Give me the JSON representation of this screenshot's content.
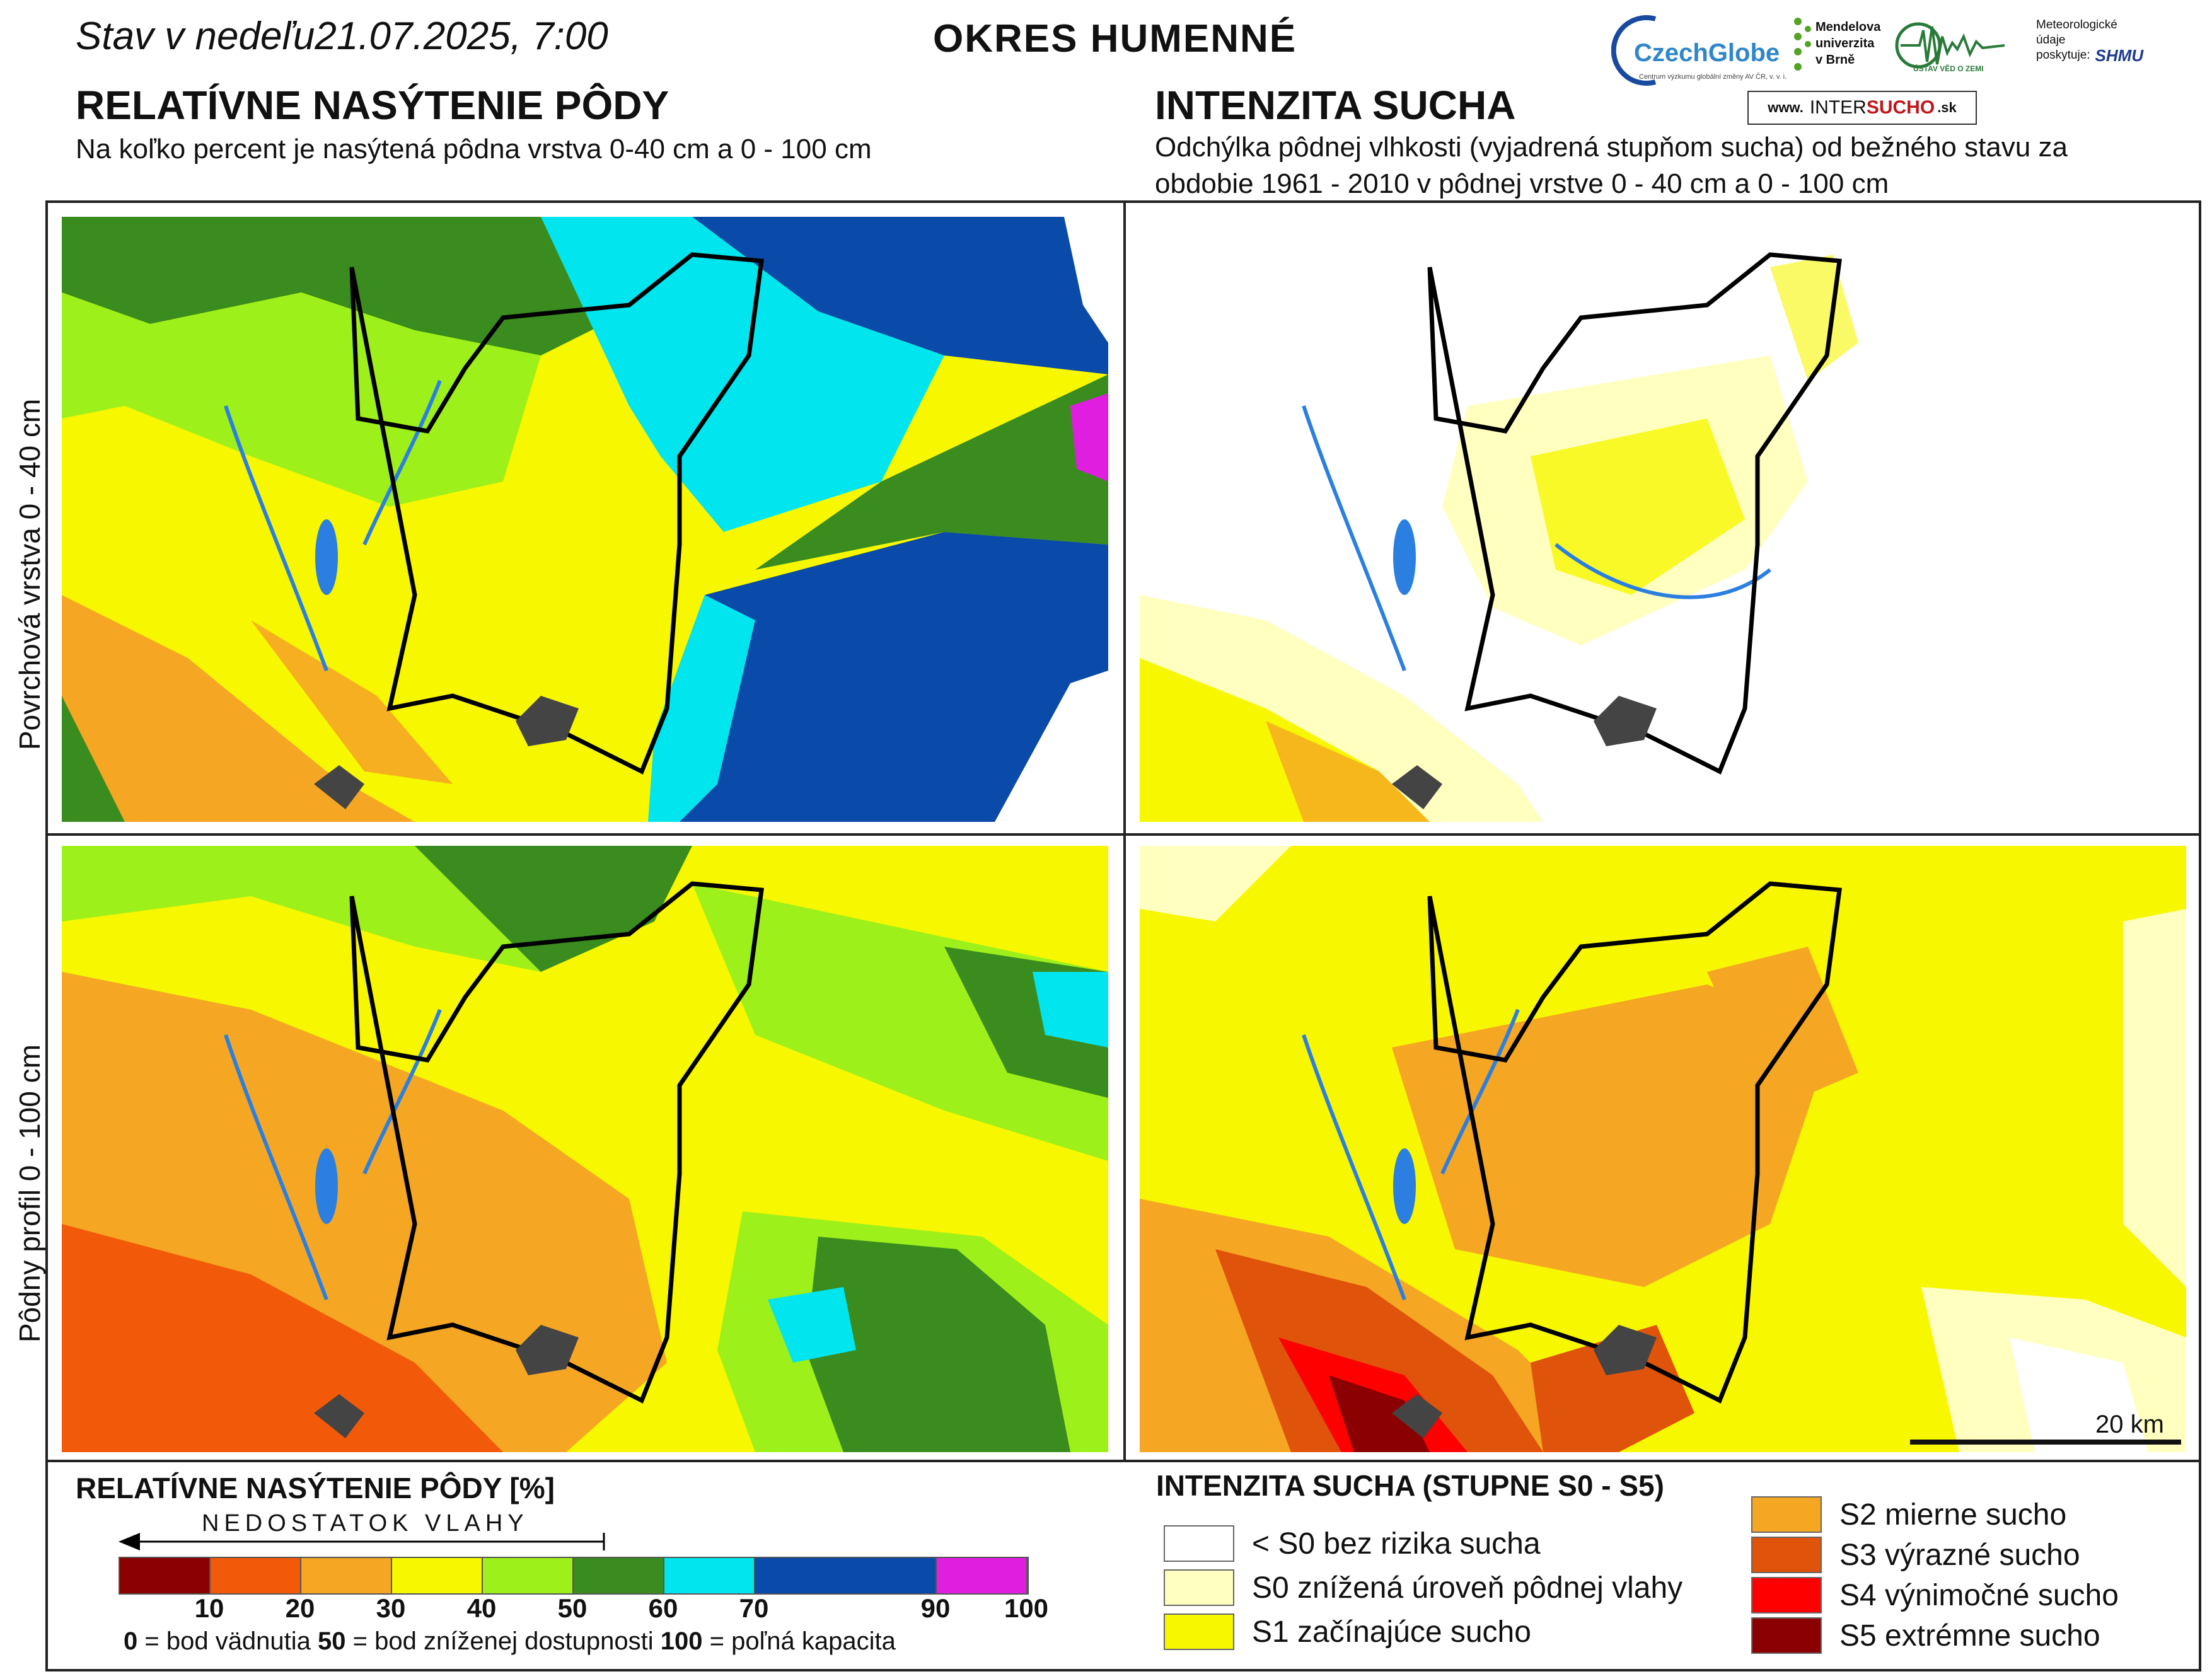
{
  "header": {
    "date_text": "Stav v nedeľu21.07.2025, 7:00",
    "district": "OKRES HUMENNÉ"
  },
  "left_panel": {
    "heading": "RELATÍVNE NASÝTENIE PÔDY",
    "subheading": "Na koľko percent je nasýtená pôdna vrstva 0-40 cm a 0 - 100 cm"
  },
  "right_panel": {
    "heading": "INTENZITA SUCHA",
    "subheading": "Odchýlka pôdnej vlhkosti (vyjadrená stupňom sucha) od bežného stavu za obdobie 1961 - 2010 v pôdnej vrstve 0 - 40 cm a 0 - 100 cm"
  },
  "row_labels": {
    "top": "Povrchová vrstva 0 - 40 cm",
    "bottom": "Pôdny profil 0 - 100 cm"
  },
  "logos": {
    "czechglobe": "CzechGlobe",
    "czechglobe_sub": "Centrum výzkumu globální změny AV ČR, v. v. i.",
    "mendelu_1": "Mendelova",
    "mendelu_2": "univerzita",
    "mendelu_3": "v Brně",
    "ustav": "ÚSTAV VĚD O ZEMI",
    "meteo_1": "Meteorologické",
    "meteo_2": "údaje",
    "meteo_3": "poskytuje:",
    "shmu": "SHMU",
    "intersucho_prefix": "www.",
    "intersucho_a": "INTER",
    "intersucho_b": "SUCHO",
    "intersucho_suffix": ".sk"
  },
  "saturation_legend": {
    "title": "RELATÍVNE NASÝTENIE PÔDY [%]",
    "arrow_label": "NEDOSTATOK VLAHY",
    "classes": [
      {
        "from": 0,
        "to": 10,
        "color": "#8b0000"
      },
      {
        "from": 10,
        "to": 20,
        "color": "#f25a0a"
      },
      {
        "from": 20,
        "to": 30,
        "color": "#f5a623"
      },
      {
        "from": 30,
        "to": 40,
        "color": "#f7f700"
      },
      {
        "from": 40,
        "to": 50,
        "color": "#9ef01a"
      },
      {
        "from": 50,
        "to": 60,
        "color": "#3a8c1e"
      },
      {
        "from": 60,
        "to": 70,
        "color": "#00e5ee"
      },
      {
        "from": 70,
        "to": 90,
        "color": "#0a4aa8"
      },
      {
        "from": 90,
        "to": 100,
        "color": "#e01ee0"
      }
    ],
    "ticks": [
      "10",
      "20",
      "30",
      "40",
      "50",
      "60",
      "70",
      "90",
      "100"
    ],
    "note_0": "0",
    "note_0_text": " = bod vädnutia  ",
    "note_50": "50",
    "note_50_text": " = bod zníženej dostupnosti  ",
    "note_100": "100",
    "note_100_text": " = poľná kapacita"
  },
  "drought_legend": {
    "title": "INTENZITA SUCHA (STUPNE S0 - S5)",
    "items": [
      {
        "label": "< S0 bez rizika sucha",
        "color": "#ffffff"
      },
      {
        "label": "S0 znížená úroveň pôdnej vlahy",
        "color": "#ffffc0"
      },
      {
        "label": "S1 začínajúce sucho",
        "color": "#f7f700"
      },
      {
        "label": "S2 mierne sucho",
        "color": "#f5a623"
      },
      {
        "label": "S3 výrazné sucho",
        "color": "#e0530a"
      },
      {
        "label": "S4 výnimočné sucho",
        "color": "#ff0000"
      },
      {
        "label": "S5 extrémne sucho",
        "color": "#8b0000"
      }
    ]
  },
  "scale": {
    "label": "20 km"
  }
}
